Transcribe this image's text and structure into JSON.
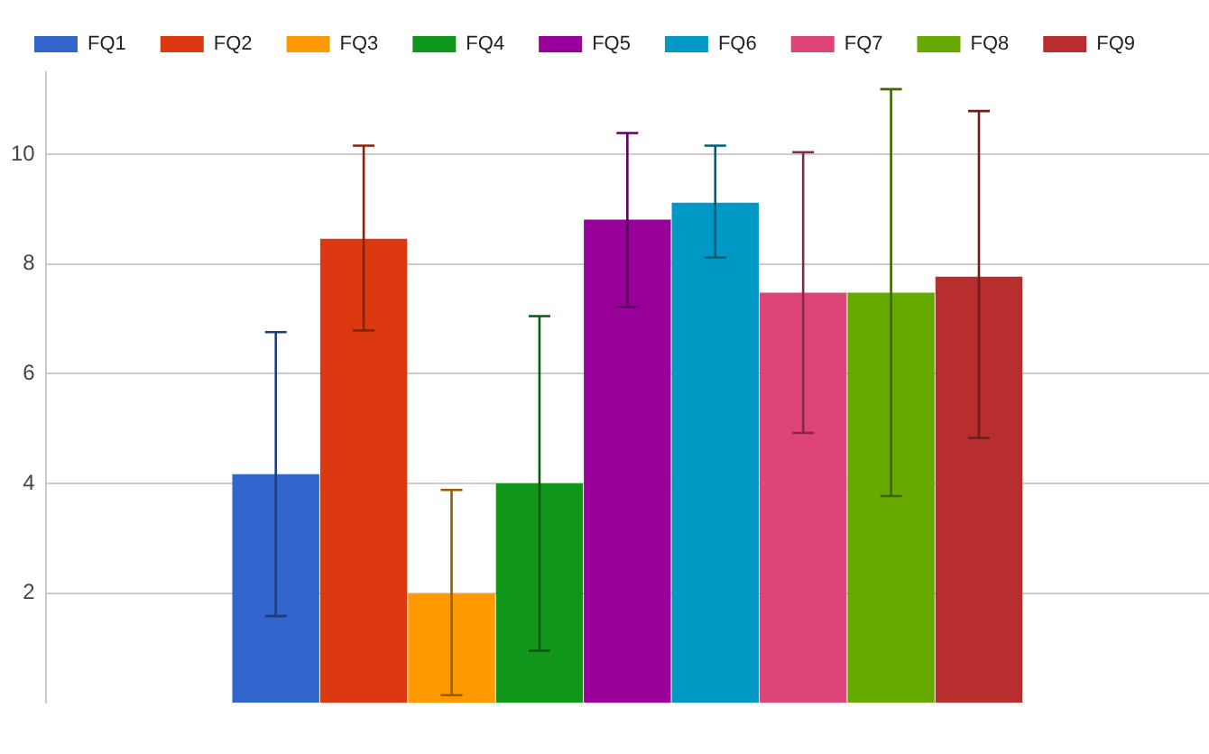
{
  "chart_data": {
    "type": "bar",
    "categories": [
      null
    ],
    "series": [
      {
        "name": "FQ1",
        "color": "#3366cc",
        "values": [
          4.17
        ],
        "errors": [
          [
            1.58,
            6.76
          ]
        ]
      },
      {
        "name": "FQ2",
        "color": "#dc3912",
        "values": [
          8.46
        ],
        "errors": [
          [
            6.79,
            10.16
          ]
        ]
      },
      {
        "name": "FQ3",
        "color": "#ff9900",
        "values": [
          1.99
        ],
        "errors": [
          [
            0.14,
            3.88
          ]
        ]
      },
      {
        "name": "FQ4",
        "color": "#109618",
        "values": [
          4.0
        ],
        "errors": [
          [
            0.95,
            7.05
          ]
        ]
      },
      {
        "name": "FQ5",
        "color": "#990099",
        "values": [
          8.81
        ],
        "errors": [
          [
            7.22,
            10.39
          ]
        ]
      },
      {
        "name": "FQ6",
        "color": "#0099c6",
        "values": [
          9.12
        ],
        "errors": [
          [
            8.12,
            10.16
          ]
        ]
      },
      {
        "name": "FQ7",
        "color": "#dd4477",
        "values": [
          7.48
        ],
        "errors": [
          [
            4.92,
            10.04
          ]
        ]
      },
      {
        "name": "FQ8",
        "color": "#66aa00",
        "values": [
          7.48
        ],
        "errors": [
          [
            3.77,
            11.19
          ]
        ]
      },
      {
        "name": "FQ9",
        "color": "#b82e2e",
        "values": [
          7.77
        ],
        "errors": [
          [
            4.83,
            10.79
          ]
        ]
      }
    ],
    "ylim": [
      0,
      11.5
    ],
    "yticks": [
      2,
      4,
      6,
      8,
      10
    ],
    "grid": "y",
    "legend": "top left"
  }
}
